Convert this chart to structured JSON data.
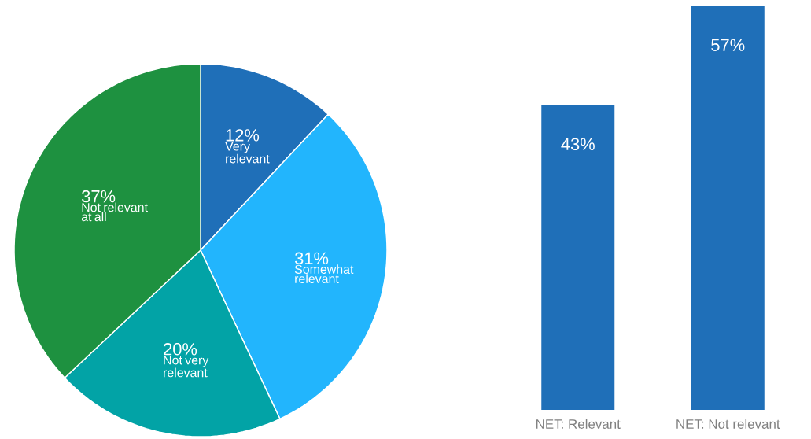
{
  "chart_data": [
    {
      "type": "pie",
      "categories": [
        "Very relevant",
        "Somewhat relevant",
        "Not very relevant",
        "Not relevant at all"
      ],
      "values": [
        12,
        31,
        20,
        37
      ],
      "colors": [
        "#1f6fb8",
        "#22b5fd",
        "#02a3a6",
        "#1e9140"
      ],
      "value_labels": [
        "12%",
        "31%",
        "20%",
        "37%"
      ]
    },
    {
      "type": "bar",
      "categories": [
        "NET: Relevant",
        "NET: Not relevant"
      ],
      "values": [
        43,
        57
      ],
      "color": "#1f6fb8",
      "value_labels": [
        "43%",
        "57%"
      ],
      "ylim": [
        0,
        57
      ],
      "tick_labels": "x"
    }
  ]
}
